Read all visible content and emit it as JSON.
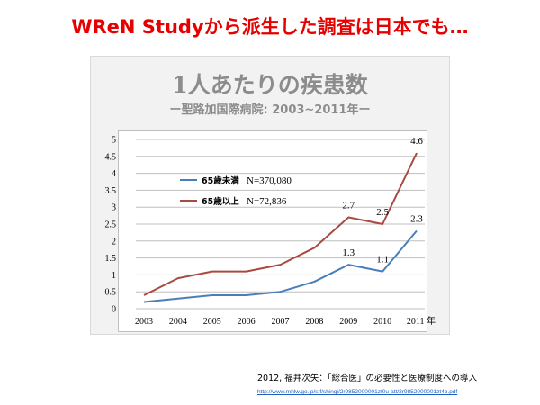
{
  "slide": {
    "title": "WReN Studyから派生した調査は日本でも…",
    "citation": "2012, 福井次矢：「総合医」の必要性と医療制度への導入",
    "source_url": "http://www.mhlw.go.jp/stf/shingi/2r9852000001zt0u-att/2r9852000001zt4b.pdf"
  },
  "chart_data": {
    "type": "line",
    "title": "1人あたりの疾患数",
    "subtitle": "ー聖路加国際病院: 2003~2011年ー",
    "x": [
      "2003",
      "2004",
      "2005",
      "2006",
      "2007",
      "2008",
      "2009",
      "2010",
      "2011"
    ],
    "x_last_tick_label": "2011 年",
    "ylim": [
      0,
      5
    ],
    "yticks": [
      "0",
      "0.5",
      "1",
      "1.5",
      "2",
      "2.5",
      "3",
      "3.5",
      "4",
      "4.5",
      "5"
    ],
    "grid": true,
    "legend_position": "upper-left inside plot",
    "series": [
      {
        "name": "65歳未満",
        "n_label": "N=370,080",
        "color": "#4a7ebb",
        "values": [
          0.2,
          0.3,
          0.4,
          0.4,
          0.5,
          0.8,
          1.3,
          1.1,
          2.3
        ],
        "data_labels": [
          {
            "x": "2009",
            "text": "1.3"
          },
          {
            "x": "2010",
            "text": "1.1"
          },
          {
            "x": "2011",
            "text": "2.3"
          }
        ]
      },
      {
        "name": "65歳以上",
        "n_label": "N=72,836",
        "color": "#a84a40",
        "values": [
          0.4,
          0.9,
          1.1,
          1.1,
          1.3,
          1.8,
          2.7,
          2.5,
          4.6
        ],
        "data_labels": [
          {
            "x": "2009",
            "text": "2.7"
          },
          {
            "x": "2010",
            "text": "2.5"
          },
          {
            "x": "2011",
            "text": "4.6"
          }
        ]
      }
    ]
  }
}
